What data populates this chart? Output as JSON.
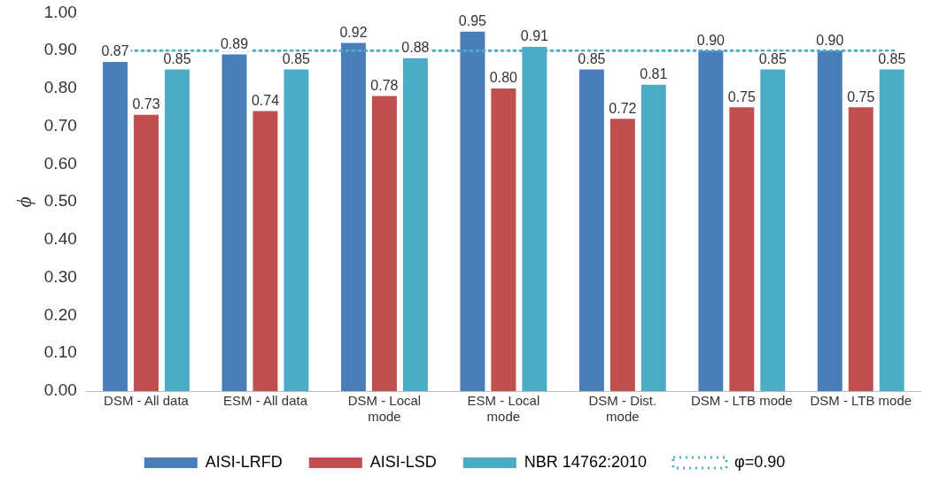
{
  "chart_data": {
    "type": "bar",
    "ylabel": "ϕ",
    "categories": [
      "DSM - All data",
      "ESM - All data",
      "DSM - Local mode",
      "ESM - Local mode",
      "DSM - Dist. mode",
      "DSM - LTB mode",
      "DSM - LTB mode"
    ],
    "series": [
      {
        "name": "AISI-LRFD",
        "color": "#4a7ebb",
        "values": [
          0.87,
          0.89,
          0.92,
          0.95,
          0.85,
          0.9,
          0.9
        ],
        "value_labels": [
          "0.87",
          "0.89",
          "0.92",
          "0.95",
          "0.85",
          "0.90",
          "0.90"
        ]
      },
      {
        "name": "AISI-LSD",
        "color": "#c0504d",
        "values": [
          0.73,
          0.74,
          0.78,
          0.8,
          0.72,
          0.75,
          0.75
        ],
        "value_labels": [
          "0.73",
          "0.74",
          "0.78",
          "0.80",
          "0.72",
          "0.75",
          "0.75"
        ]
      },
      {
        "name": "NBR 14762:2010",
        "color": "#4bacc6",
        "values": [
          0.85,
          0.85,
          0.88,
          0.91,
          0.81,
          0.85,
          0.85
        ],
        "value_labels": [
          "0.85",
          "0.85",
          "0.88",
          "0.91",
          "0.81",
          "0.85",
          "0.85"
        ]
      }
    ],
    "ylim": [
      0,
      1
    ],
    "yticks": [
      {
        "value": 0,
        "label": "0.00"
      },
      {
        "value": 0.1,
        "label": "0.10"
      },
      {
        "value": 0.2,
        "label": "0.20"
      },
      {
        "value": 0.3,
        "label": "0.30"
      },
      {
        "value": 0.4,
        "label": "0.40"
      },
      {
        "value": 0.5,
        "label": "0.50"
      },
      {
        "value": 0.6,
        "label": "0.60"
      },
      {
        "value": 0.7,
        "label": "0.70"
      },
      {
        "value": 0.8,
        "label": "0.80"
      },
      {
        "value": 0.9,
        "label": "0.90"
      },
      {
        "value": 1,
        "label": "1.00"
      }
    ],
    "ref_lines": [
      {
        "axis": "y",
        "value": 0.9,
        "label": "φ=0.90",
        "color": "#4bacc6",
        "line_style": "dotted"
      }
    ],
    "legend": "bottom",
    "grid": false
  }
}
